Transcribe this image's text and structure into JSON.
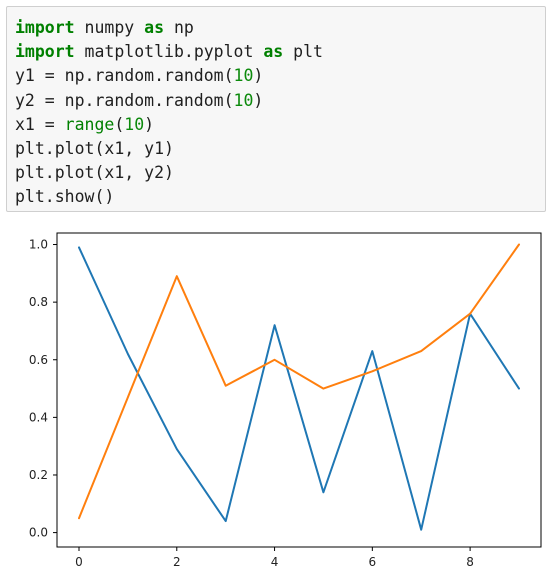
{
  "code_cell": {
    "lines": [
      [
        {
          "t": "import",
          "k": "kw"
        },
        {
          "t": " numpy ",
          "k": ""
        },
        {
          "t": "as",
          "k": "kw"
        },
        {
          "t": " np",
          "k": ""
        }
      ],
      [
        {
          "t": "import",
          "k": "kw"
        },
        {
          "t": " matplotlib.pyplot ",
          "k": ""
        },
        {
          "t": "as",
          "k": "kw"
        },
        {
          "t": " plt",
          "k": ""
        }
      ],
      [
        {
          "t": "y1 = np.random.random(",
          "k": ""
        },
        {
          "t": "10",
          "k": "num"
        },
        {
          "t": ")",
          "k": ""
        }
      ],
      [
        {
          "t": "y2 = np.random.random(",
          "k": ""
        },
        {
          "t": "10",
          "k": "num"
        },
        {
          "t": ")",
          "k": ""
        }
      ],
      [
        {
          "t": "x1 = ",
          "k": ""
        },
        {
          "t": "range",
          "k": "bi"
        },
        {
          "t": "(",
          "k": ""
        },
        {
          "t": "10",
          "k": "num"
        },
        {
          "t": ")",
          "k": ""
        }
      ],
      [
        {
          "t": "plt.plot(x1, y1)",
          "k": ""
        }
      ],
      [
        {
          "t": "plt.plot(x1, y2)",
          "k": ""
        }
      ],
      [
        {
          "t": "plt.show()",
          "k": ""
        }
      ]
    ]
  },
  "chart_data": {
    "type": "line",
    "title": "",
    "xlabel": "",
    "ylabel": "",
    "x": [
      0,
      1,
      2,
      3,
      4,
      5,
      6,
      7,
      8,
      9
    ],
    "xlim": [
      -0.45,
      9.45
    ],
    "ylim": [
      -0.05,
      1.04
    ],
    "xticks": [
      0,
      2,
      4,
      6,
      8
    ],
    "yticks": [
      0.0,
      0.2,
      0.4,
      0.6,
      0.8,
      1.0
    ],
    "xtick_labels": [
      "0",
      "2",
      "4",
      "6",
      "8"
    ],
    "ytick_labels": [
      "0.0",
      "0.2",
      "0.4",
      "0.6",
      "0.8",
      "1.0"
    ],
    "grid": false,
    "legend": false,
    "series": [
      {
        "color": "#1f77b4",
        "values": [
          0.99,
          0.62,
          0.29,
          0.04,
          0.72,
          0.14,
          0.63,
          0.01,
          0.76,
          0.5
        ]
      },
      {
        "color": "#ff7f0e",
        "values": [
          0.05,
          0.47,
          0.89,
          0.51,
          0.6,
          0.5,
          0.56,
          0.63,
          0.76,
          1.0
        ]
      }
    ]
  }
}
